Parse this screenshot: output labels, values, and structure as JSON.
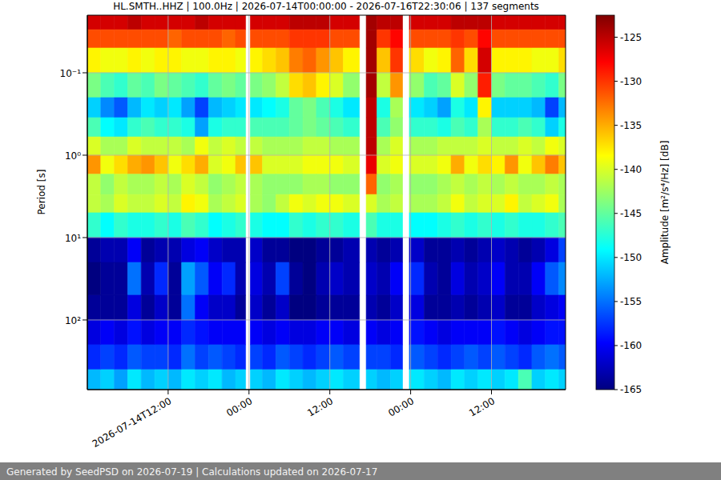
{
  "chart_data": {
    "type": "heatmap",
    "title": "HL.SMTH..HHZ | 100.0Hz | 2026-07-14T00:00:00 - 2026-07-16T22:30:06 | 137 segments",
    "y_label": "Period [s]",
    "footer": "Generated by SeedPSD on 2026-07-19 | Calculations updated on 2026-07-17",
    "log": "y",
    "grid": true,
    "color": "jet",
    "xlim": [
      0,
      71
    ],
    "xticks": [
      {
        "value": 12,
        "label": "2026-07-14T12:00"
      },
      {
        "value": 24,
        "label": "00:00"
      },
      {
        "value": 36,
        "label": "12:00"
      },
      {
        "value": 48,
        "label": "00:00"
      },
      {
        "value": 60,
        "label": "12:00"
      }
    ],
    "ylim": [
      0.02,
      700
    ],
    "yticks": [
      {
        "value": 0.1,
        "label": "10⁻¹"
      },
      {
        "value": 1,
        "label": "10⁰"
      },
      {
        "value": 10,
        "label": "10¹"
      },
      {
        "value": 100,
        "label": "10²"
      }
    ],
    "x_edges": [
      0,
      2,
      4,
      6,
      8,
      10,
      12,
      14,
      16,
      18,
      20,
      22,
      23.5,
      24.2,
      26,
      28,
      30,
      32,
      34,
      36,
      38,
      40.4,
      41.4,
      43,
      45,
      46.8,
      47.8,
      50,
      52,
      54,
      56,
      58,
      60,
      62,
      64,
      66,
      68,
      70,
      71
    ],
    "y_edges": [
      0.02,
      0.03,
      0.05,
      0.1,
      0.2,
      0.35,
      0.6,
      1,
      1.7,
      3,
      5,
      10,
      20,
      50,
      100,
      200,
      400,
      700
    ],
    "cells": [
      [
        -126,
        -126,
        -126,
        -125,
        -126,
        -126,
        -126,
        -126,
        -125,
        -126,
        -126,
        -126,
        null,
        -126,
        -126,
        -126,
        -125,
        -125,
        -125,
        -126,
        -126,
        null,
        -124,
        -125,
        -125,
        null,
        -126,
        -126,
        -126,
        -125,
        -125,
        -125,
        -126,
        -126,
        -126,
        -126,
        -126,
        -126
      ],
      [
        -131,
        -131,
        -131,
        -131,
        -131,
        -131,
        -132,
        -131,
        -131,
        -131,
        -132,
        -131,
        null,
        -131,
        -131,
        -131,
        -130,
        -130,
        -130,
        -131,
        -131,
        null,
        -124,
        -130,
        -128,
        null,
        -131,
        -131,
        -131,
        -130,
        -131,
        -128,
        -131,
        -131,
        -131,
        -131,
        -131,
        -131
      ],
      [
        -138,
        -139,
        -139,
        -138,
        -139,
        -138,
        -138,
        -139,
        -139,
        -138,
        -138,
        -139,
        null,
        -138,
        -137,
        -136,
        -133,
        -132,
        -134,
        -136,
        -138,
        null,
        -124,
        -136,
        -130,
        null,
        -137,
        -139,
        -138,
        -132,
        -137,
        -126,
        -138,
        -138,
        -138,
        -139,
        -139,
        -137
      ],
      [
        -144,
        -146,
        -147,
        -145,
        -146,
        -144,
        -145,
        -146,
        -147,
        -145,
        -144,
        -145,
        null,
        -144,
        -143,
        -141,
        -137,
        -136,
        -138,
        -140,
        -143,
        null,
        -124,
        -141,
        -134,
        null,
        -143,
        -146,
        -145,
        -140,
        -143,
        -129,
        -144,
        -145,
        -145,
        -146,
        -147,
        -144
      ],
      [
        -151,
        -154,
        -156,
        -152,
        -150,
        -151,
        -150,
        -153,
        -157,
        -152,
        -151,
        -150,
        null,
        -150,
        -149,
        -148,
        -145,
        -144,
        -146,
        -148,
        -150,
        null,
        -125,
        -148,
        -142,
        null,
        -150,
        -151,
        -153,
        -148,
        -150,
        -138,
        -151,
        -151,
        -151,
        -152,
        -157,
        -152
      ],
      [
        -146,
        -149,
        -150,
        -147,
        -146,
        -147,
        -147,
        -148,
        -153,
        -148,
        -147,
        -147,
        null,
        -146,
        -146,
        -146,
        -145,
        -144,
        -145,
        -146,
        -147,
        null,
        -125,
        -146,
        -143,
        null,
        -147,
        -147,
        -148,
        -146,
        -147,
        -142,
        -147,
        -147,
        -146,
        -147,
        -151,
        -148
      ],
      [
        -140,
        -142,
        -142,
        -140,
        -141,
        -141,
        -141,
        -142,
        -139,
        -141,
        -140,
        -141,
        null,
        -141,
        -142,
        -142,
        -142,
        -141,
        -141,
        -142,
        -142,
        null,
        -125,
        -142,
        -140,
        null,
        -142,
        -142,
        -141,
        -141,
        -141,
        -140,
        -141,
        -141,
        -140,
        -141,
        -139,
        -140
      ],
      [
        -134,
        -139,
        -137,
        -135,
        -134,
        -136,
        -139,
        -137,
        -135,
        -140,
        -139,
        -136,
        null,
        -136,
        -140,
        -140,
        -140,
        -139,
        -139,
        -139,
        -140,
        null,
        -127,
        -140,
        -139,
        null,
        -140,
        -140,
        -139,
        -135,
        -139,
        -137,
        -138,
        -134,
        -139,
        -136,
        -133,
        -136
      ],
      [
        -141,
        -143,
        -141,
        -142,
        -142,
        -141,
        -142,
        -140,
        -141,
        -143,
        -142,
        -141,
        null,
        -142,
        -143,
        -143,
        -143,
        -142,
        -142,
        -143,
        -143,
        null,
        -132,
        -143,
        -142,
        null,
        -143,
        -143,
        -142,
        -141,
        -142,
        -141,
        -142,
        -141,
        -142,
        -142,
        -141,
        -142
      ],
      [
        -141,
        -142,
        -140,
        -141,
        -141,
        -140,
        -141,
        -138,
        -139,
        -142,
        -141,
        -140,
        null,
        -142,
        -143,
        -141,
        -139,
        -140,
        -139,
        -139,
        -140,
        null,
        -140,
        -142,
        -141,
        null,
        -142,
        -142,
        -141,
        -139,
        -141,
        -140,
        -140,
        -138,
        -141,
        -140,
        -139,
        -142
      ],
      [
        -147,
        -149,
        -147,
        -148,
        -148,
        -147,
        -148,
        -146,
        -147,
        -149,
        -148,
        -147,
        null,
        -148,
        -149,
        -149,
        -147,
        -148,
        -147,
        -147,
        -148,
        null,
        -146,
        -148,
        -148,
        null,
        -149,
        -149,
        -148,
        -147,
        -148,
        -147,
        -148,
        -147,
        -148,
        -148,
        -147,
        -146
      ],
      [
        -164,
        -163,
        -163,
        -160,
        -164,
        -163,
        -163,
        -161,
        -160,
        -162,
        -163,
        -163,
        null,
        -162,
        -164,
        -164,
        -165,
        -165,
        -164,
        -164,
        -163,
        null,
        -163,
        -164,
        -163,
        null,
        -162,
        -164,
        -164,
        -163,
        -164,
        -163,
        -162,
        -163,
        -164,
        -163,
        -161,
        -157
      ],
      [
        -165,
        -164,
        -164,
        -155,
        -163,
        -158,
        -164,
        -153,
        -156,
        -160,
        -158,
        -163,
        null,
        -161,
        -163,
        -157,
        -164,
        -165,
        -163,
        -162,
        -163,
        null,
        -162,
        -163,
        -160,
        null,
        -158,
        -163,
        -164,
        -161,
        -163,
        -162,
        -160,
        -163,
        -163,
        -160,
        -156,
        -154
      ],
      [
        -164,
        -164,
        -164,
        -161,
        -164,
        -162,
        -164,
        -155,
        -160,
        -162,
        -162,
        -164,
        null,
        -162,
        -164,
        -162,
        -165,
        -165,
        -164,
        -164,
        -164,
        null,
        -163,
        -164,
        -162,
        null,
        -161,
        -164,
        -164,
        -163,
        -164,
        -163,
        -162,
        -164,
        -164,
        -162,
        -161,
        -160
      ],
      [
        -161,
        -160,
        -161,
        -159,
        -161,
        -160,
        -160,
        -158,
        -159,
        -160,
        -160,
        -160,
        null,
        -160,
        -161,
        -160,
        -161,
        -161,
        -160,
        -160,
        -161,
        null,
        -160,
        -161,
        -160,
        null,
        -159,
        -160,
        -161,
        -160,
        -160,
        -160,
        -159,
        -160,
        -161,
        -160,
        -159,
        -159
      ],
      [
        -158,
        -157,
        -158,
        -156,
        -157,
        -157,
        -158,
        -155,
        -157,
        -156,
        -157,
        -158,
        null,
        -157,
        -158,
        -156,
        -157,
        -158,
        -157,
        -156,
        -157,
        null,
        -157,
        -157,
        -158,
        null,
        -156,
        -157,
        -158,
        -157,
        -156,
        -157,
        -156,
        -157,
        -158,
        -156,
        -155,
        -156
      ],
      [
        -152,
        -151,
        -153,
        -150,
        -152,
        -151,
        -152,
        -150,
        -151,
        -150,
        -152,
        -151,
        null,
        -151,
        -152,
        -150,
        -151,
        -152,
        -151,
        -150,
        -151,
        null,
        -151,
        -152,
        -151,
        null,
        -150,
        -151,
        -152,
        -150,
        -151,
        -150,
        -151,
        -150,
        -146,
        -151,
        -150,
        -151
      ]
    ],
    "colorbar": {
      "label": "Amplitude [m²/s⁴/Hz] [dB]",
      "range": [
        -165,
        -122.5
      ],
      "ticks": [
        -125,
        -130,
        -135,
        -140,
        -145,
        -150,
        -155,
        -160,
        -165
      ]
    }
  }
}
